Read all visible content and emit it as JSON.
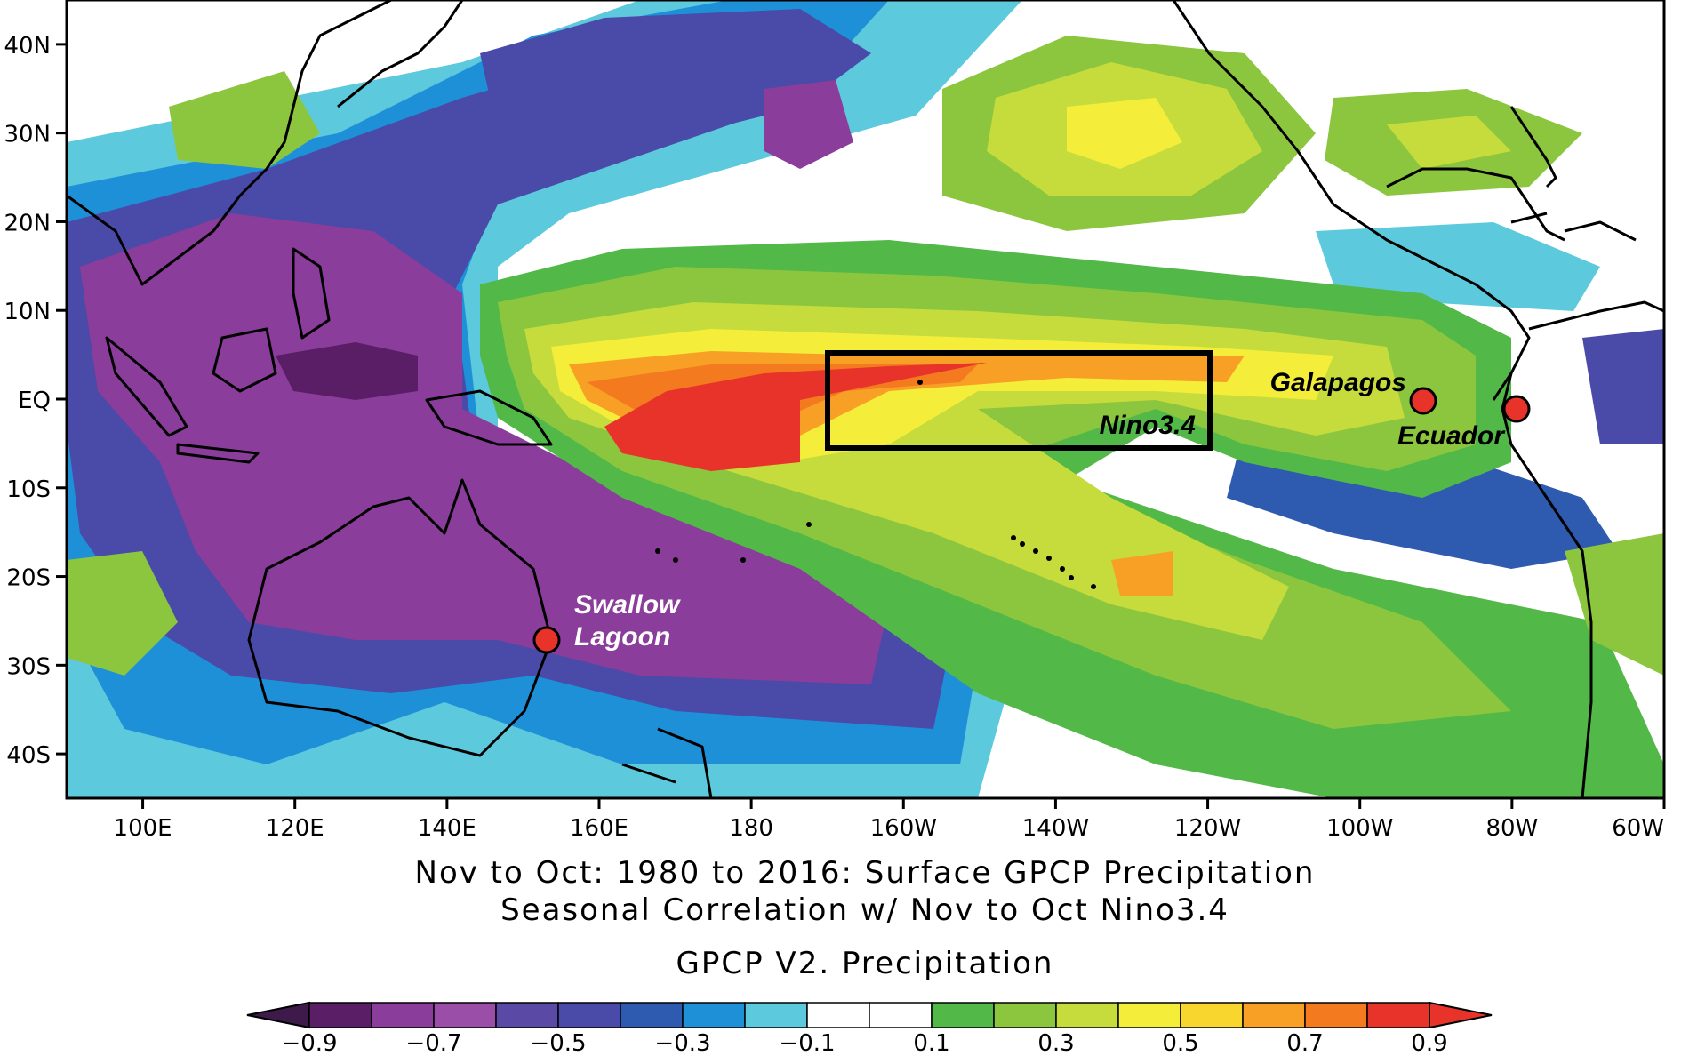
{
  "map": {
    "lat_labels": [
      "40N",
      "30N",
      "20N",
      "10N",
      "EQ",
      "10S",
      "20S",
      "30S",
      "40S"
    ],
    "lon_labels": [
      "100E",
      "120E",
      "140E",
      "160E",
      "180",
      "160W",
      "140W",
      "120W",
      "100W",
      "80W",
      "60W"
    ],
    "lon_range": [
      90,
      300
    ],
    "lat_range": [
      -45,
      45
    ],
    "box_label": "Nino3.4",
    "sites": [
      {
        "name": "Galapagos",
        "label_color": "#000000"
      },
      {
        "name": "Ecuador",
        "label_color": "#000000"
      },
      {
        "name": "Swallow Lagoon",
        "label_lines": [
          "Swallow",
          "Lagoon"
        ],
        "label_color": "#ffffff"
      }
    ],
    "marker_color": "#e8332a"
  },
  "titles": {
    "line1": "Nov to Oct: 1980 to 2016: Surface GPCP Precipitation",
    "line2": "Seasonal Correlation w/ Nov to Oct Nino3.4",
    "line3": "GPCP V2. Precipitation"
  },
  "colorbar": {
    "labels": [
      "−0.9",
      "−0.7",
      "−0.5",
      "−0.3",
      "−0.1",
      "0.1",
      "0.3",
      "0.5",
      "0.7",
      "0.9"
    ],
    "colors": [
      "#5a1e66",
      "#8a3d9a",
      "#9a4ea8",
      "#5a4aa5",
      "#4a4aa8",
      "#2e5ab0",
      "#1e90d8",
      "#5ccadc",
      "#ffffff",
      "#ffffff",
      "#52b848",
      "#8cc63f",
      "#c6dc3c",
      "#f4ee3a",
      "#f9d62e",
      "#f7a025",
      "#f47a20",
      "#e8332a"
    ],
    "under_color": "#3d1a4a",
    "over_color": "#e8332a"
  }
}
